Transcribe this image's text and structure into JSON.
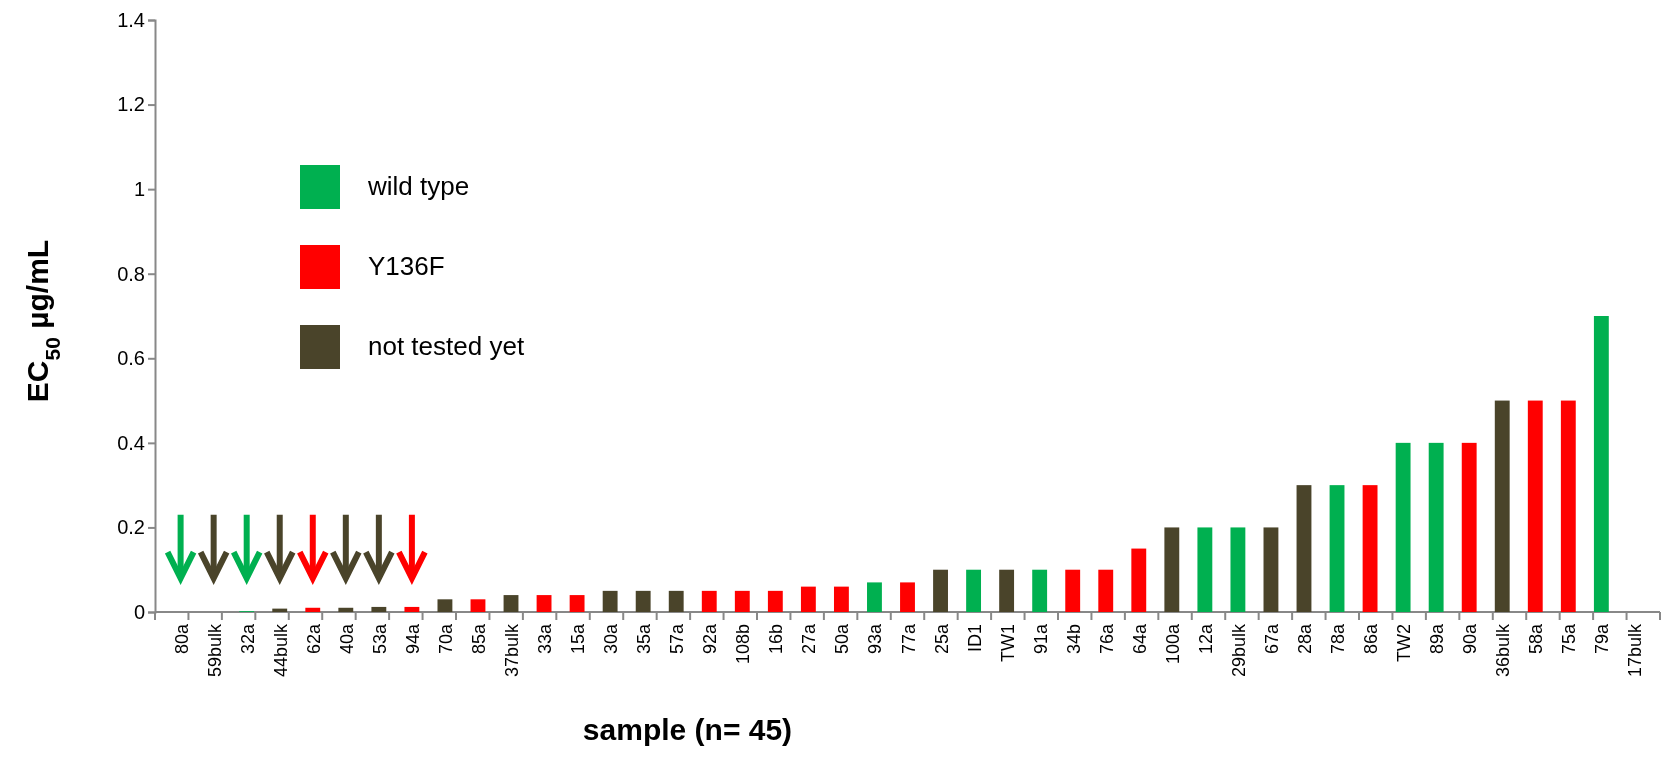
{
  "chart_data": {
    "type": "bar",
    "xlabel": "sample (n= 45)",
    "ylabel": "EC$_{50}$ µg/mL",
    "categories": [
      "80a",
      "59bulk",
      "32a",
      "44bulk",
      "62a",
      "40a",
      "53a",
      "94a",
      "70a",
      "85a",
      "37bulk",
      "33a",
      "15a",
      "30a",
      "35a",
      "57a",
      "92a",
      "108b",
      "16b",
      "27a",
      "50a",
      "93a",
      "77a",
      "25a",
      "ID1",
      "TW1",
      "91a",
      "34b",
      "76a",
      "64a",
      "100a",
      "12a",
      "29bulk",
      "67a",
      "28a",
      "78a",
      "86a",
      "TW2",
      "89a",
      "90a",
      "36bulk",
      "58a",
      "75a",
      "79a",
      "17bulk"
    ],
    "series": [
      {
        "name": "wild type",
        "color": "#00b050",
        "values": [
          0,
          null,
          0.002,
          null,
          null,
          null,
          null,
          null,
          null,
          null,
          null,
          null,
          null,
          null,
          null,
          null,
          null,
          null,
          null,
          null,
          null,
          0.07,
          null,
          null,
          0.1,
          null,
          0.1,
          null,
          null,
          null,
          null,
          0.2,
          0.2,
          null,
          null,
          0.3,
          null,
          0.4,
          0.4,
          null,
          null,
          null,
          null,
          0.7,
          null
        ]
      },
      {
        "name": "Y136F",
        "color": "#ff0000",
        "values": [
          null,
          null,
          null,
          null,
          0.01,
          null,
          null,
          0.012,
          null,
          0.03,
          null,
          0.04,
          0.04,
          null,
          null,
          null,
          0.05,
          0.05,
          0.05,
          0.06,
          0.06,
          null,
          0.07,
          null,
          null,
          null,
          null,
          0.1,
          0.1,
          0.15,
          null,
          null,
          null,
          null,
          null,
          null,
          0.3,
          null,
          null,
          0.4,
          null,
          0.5,
          0.5,
          null,
          null
        ]
      },
      {
        "name": "not tested yet",
        "color": "#4a442a",
        "values": [
          null,
          0,
          null,
          0.008,
          null,
          0.01,
          0.012,
          null,
          0.03,
          null,
          0.04,
          null,
          null,
          0.05,
          0.05,
          0.05,
          null,
          null,
          null,
          null,
          null,
          null,
          null,
          0.1,
          null,
          0.1,
          null,
          null,
          null,
          null,
          0.2,
          null,
          null,
          0.2,
          0.3,
          null,
          null,
          null,
          null,
          null,
          0.5,
          null,
          null,
          null,
          null
        ]
      }
    ],
    "ylim": [
      0,
      1.4
    ],
    "yticks": [
      0,
      0.2,
      0.4,
      0.6,
      0.8,
      1,
      1.2,
      1.4
    ],
    "legend": "top left"
  }
}
